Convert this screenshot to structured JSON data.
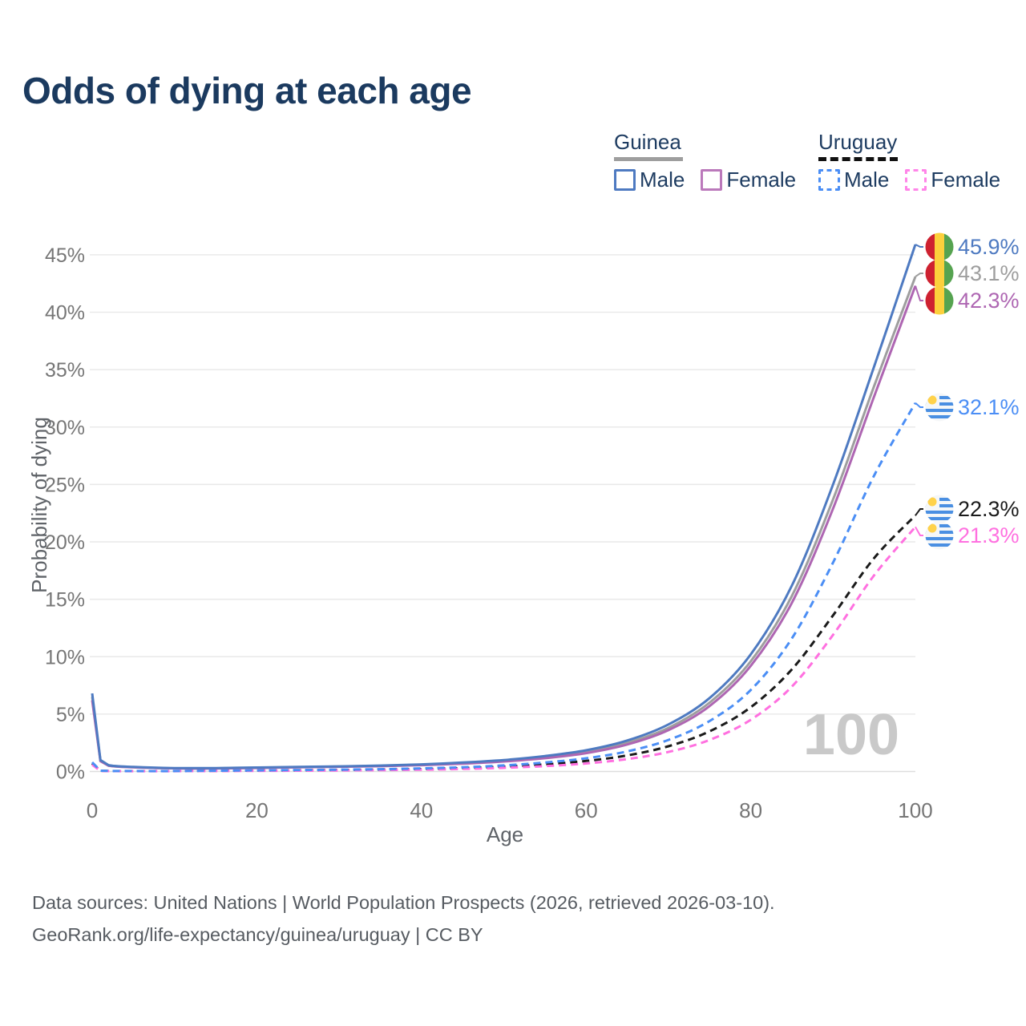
{
  "title": "Odds of dying at each age",
  "watermark": "100",
  "legend": {
    "guinea": {
      "title": "Guinea",
      "male": "Male",
      "female": "Female"
    },
    "uruguay": {
      "title": "Uruguay",
      "male": "Male",
      "female": "Female"
    }
  },
  "footer": {
    "line1": "Data sources: United Nations | World Population Prospects (2026, retrieved 2026-03-10).",
    "line2": "GeoRank.org/life-expectancy/guinea/uruguay | CC BY"
  },
  "colors": {
    "title_navy": "#1b3a5f",
    "axis_gray": "#767676",
    "grid_gray": "#e9e9e9",
    "watermark_gray": "#c9c9c9",
    "guinea_underline": "#9e9e9e",
    "uruguay_underline": "#111111",
    "flag_guinea": [
      "#ce2130",
      "#fcd03c",
      "#56a350"
    ],
    "flag_uruguay_blue": "#4a8fe2",
    "flag_uruguay_sun": "#ffd24a"
  },
  "chart_data": {
    "type": "line",
    "title": "Odds of dying at each age",
    "xlabel": "Age",
    "ylabel": "Probability of dying",
    "xlim": [
      0,
      100
    ],
    "ylim_pct": [
      0,
      46
    ],
    "grid": "horizontal",
    "legend_position": "top-right",
    "x_ticks": [
      0,
      20,
      40,
      60,
      80,
      100
    ],
    "y_ticks_pct": [
      0,
      5,
      10,
      15,
      20,
      25,
      30,
      35,
      40,
      45
    ],
    "ages": [
      0,
      1,
      2,
      5,
      10,
      15,
      20,
      25,
      30,
      35,
      40,
      45,
      50,
      55,
      60,
      65,
      70,
      75,
      80,
      85,
      90,
      95,
      100
    ],
    "series": [
      {
        "name": "Guinea Male",
        "country": "Guinea",
        "sex": "Male",
        "style": "solid",
        "color": "#4e7ac1",
        "flag": "guinea",
        "end_label": "45.9%",
        "values_pct": [
          6.8,
          1.0,
          0.55,
          0.4,
          0.3,
          0.3,
          0.35,
          0.4,
          0.45,
          0.52,
          0.62,
          0.78,
          1.0,
          1.35,
          1.85,
          2.7,
          4.1,
          6.4,
          10.2,
          16.2,
          25.0,
          35.3,
          45.9
        ]
      },
      {
        "name": "Guinea Both sexes",
        "country": "Guinea",
        "sex": "Both",
        "style": "solid",
        "color": "#9e9e9e",
        "flag": "guinea",
        "end_label": "43.1%",
        "values_pct": [
          6.5,
          0.95,
          0.52,
          0.38,
          0.28,
          0.28,
          0.33,
          0.38,
          0.43,
          0.49,
          0.58,
          0.72,
          0.93,
          1.25,
          1.7,
          2.5,
          3.8,
          6.0,
          9.6,
          15.3,
          23.7,
          33.6,
          43.1
        ]
      },
      {
        "name": "Guinea Female",
        "country": "Guinea",
        "sex": "Female",
        "style": "solid",
        "color": "#ae66b2",
        "flag": "guinea",
        "end_label": "42.3%",
        "values_pct": [
          6.2,
          0.9,
          0.5,
          0.36,
          0.27,
          0.26,
          0.31,
          0.36,
          0.41,
          0.46,
          0.55,
          0.68,
          0.87,
          1.16,
          1.6,
          2.35,
          3.6,
          5.7,
          9.2,
          14.7,
          22.9,
          32.7,
          42.3
        ]
      },
      {
        "name": "Uruguay Male",
        "country": "Uruguay",
        "sex": "Male",
        "style": "dashed",
        "color": "#4b8ef5",
        "flag": "uruguay",
        "end_label": "32.1%",
        "values_pct": [
          0.8,
          0.07,
          0.05,
          0.04,
          0.04,
          0.07,
          0.1,
          0.13,
          0.16,
          0.2,
          0.27,
          0.37,
          0.53,
          0.78,
          1.15,
          1.75,
          2.75,
          4.4,
          7.1,
          11.6,
          18.2,
          25.8,
          32.1
        ]
      },
      {
        "name": "Uruguay Both sexes",
        "country": "Uruguay",
        "sex": "Both",
        "style": "dashed",
        "color": "#1a1a1a",
        "flag": "uruguay",
        "end_label": "22.3%",
        "values_pct": [
          0.7,
          0.06,
          0.04,
          0.035,
          0.035,
          0.055,
          0.08,
          0.1,
          0.13,
          0.16,
          0.21,
          0.29,
          0.42,
          0.62,
          0.92,
          1.4,
          2.2,
          3.5,
          5.6,
          8.9,
          13.6,
          18.6,
          22.3
        ]
      },
      {
        "name": "Uruguay Female",
        "country": "Uruguay",
        "sex": "Female",
        "style": "dashed",
        "color": "#ff70e0",
        "flag": "uruguay",
        "end_label": "21.3%",
        "values_pct": [
          0.6,
          0.05,
          0.035,
          0.03,
          0.03,
          0.04,
          0.055,
          0.07,
          0.09,
          0.12,
          0.16,
          0.22,
          0.32,
          0.47,
          0.7,
          1.08,
          1.7,
          2.75,
          4.5,
          7.4,
          11.9,
          17.1,
          21.3
        ]
      }
    ]
  }
}
